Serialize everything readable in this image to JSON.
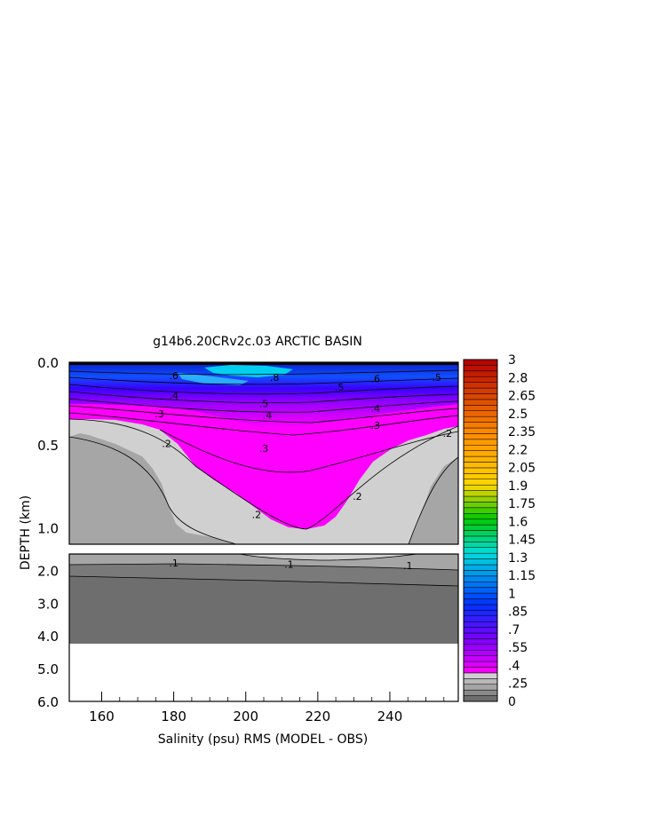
{
  "chart_data": {
    "type": "heatmap",
    "title": "g14b6.20CRv2c.03 ARCTIC BASIN",
    "xlabel": "Salinity (psu) RMS (MODEL - OBS)",
    "ylabel": "DEPTH (km)",
    "xlim": [
      151,
      259
    ],
    "x_ticks": [
      "160",
      "180",
      "200",
      "220",
      "240"
    ],
    "upper_panel": {
      "ylim": [
        0.0,
        1.1
      ],
      "y_ticks": [
        "0.0",
        "0.5",
        "1.0"
      ]
    },
    "lower_panel": {
      "ylim": [
        1.5,
        6.0
      ],
      "y_ticks": [
        "2.0",
        "3.0",
        "4.0",
        "5.0",
        "6.0"
      ]
    },
    "contour_labels": [
      {
        "text": ".6",
        "x": 180,
        "depth": 0.08
      },
      {
        "text": ".8",
        "x": 208,
        "depth": 0.09
      },
      {
        "text": ".5",
        "x": 226,
        "depth": 0.15
      },
      {
        "text": ".6",
        "x": 236,
        "depth": 0.1
      },
      {
        "text": ".5",
        "x": 253,
        "depth": 0.09
      },
      {
        "text": ".5",
        "x": 205,
        "depth": 0.25
      },
      {
        "text": ".4",
        "x": 180,
        "depth": 0.2
      },
      {
        "text": ".4",
        "x": 206,
        "depth": 0.32
      },
      {
        "text": ".4",
        "x": 236,
        "depth": 0.28
      },
      {
        "text": ".3",
        "x": 176,
        "depth": 0.31
      },
      {
        "text": ".3",
        "x": 205,
        "depth": 0.52
      },
      {
        "text": ".3",
        "x": 236,
        "depth": 0.38
      },
      {
        "text": ".2",
        "x": 178,
        "depth": 0.49
      },
      {
        "text": ".2",
        "x": 256,
        "depth": 0.43
      },
      {
        "text": ".2",
        "x": 231,
        "depth": 0.81
      },
      {
        "text": ".2",
        "x": 203,
        "depth": 0.92
      },
      {
        "text": ".1",
        "x": 180,
        "depth": 1.77
      },
      {
        "text": ".1",
        "x": 212,
        "depth": 1.81
      },
      {
        "text": ".1",
        "x": 245,
        "depth": 1.85
      }
    ],
    "colorbar": {
      "labels": [
        "3",
        "2.8",
        "2.65",
        "2.5",
        "2.35",
        "2.2",
        "2.05",
        "1.9",
        "1.75",
        "1.6",
        "1.45",
        "1.3",
        "1.15",
        "1",
        ".85",
        ".7",
        ".55",
        ".4",
        ".25",
        "0"
      ],
      "min": 0,
      "max": 3,
      "steps": 60,
      "gray_levels": [
        "#6e6e6e",
        "#8a8a8a",
        "#a4a4a4",
        "#b8b8b8",
        "#cfcfcf"
      ],
      "colors": {
        "red": "#b40000",
        "orange": "#ff8c00",
        "yellow": "#ffd700",
        "green": "#00c800",
        "cyan": "#00dcdc",
        "blue": "#0032ff",
        "purple": "#7a00ff",
        "magenta": "#ff00ff"
      }
    },
    "fields": {
      "magenta": "#ff00ff",
      "light_gray": "#d0d0d0",
      "mid_gray": "#a6a6a6",
      "dark_gray": "#7a7a7a",
      "deep_gray": "#6e6e6e"
    }
  }
}
